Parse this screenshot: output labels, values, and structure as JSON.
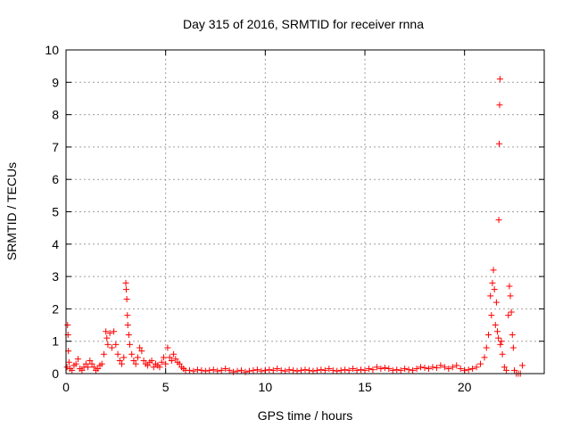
{
  "chart_data": {
    "type": "scatter",
    "title": "Day 315 of 2016, SRMTID for receiver rnna",
    "xlabel": "GPS time / hours",
    "ylabel": "SRMTID / TECUs",
    "xlim": [
      0,
      24
    ],
    "ylim": [
      0,
      10
    ],
    "xticks": [
      "0",
      "5",
      "10",
      "15",
      "20"
    ],
    "yticks": [
      "0",
      "1",
      "2",
      "3",
      "4",
      "5",
      "6",
      "7",
      "8",
      "9",
      "10"
    ],
    "grid": true,
    "marker": "+",
    "color": "#ff0000",
    "series": [
      {
        "values": [
          [
            0.05,
            0.2
          ],
          [
            0.08,
            1.5
          ],
          [
            0.1,
            1.2
          ],
          [
            0.12,
            0.7
          ],
          [
            0.15,
            0.35
          ],
          [
            0.2,
            0.15
          ],
          [
            0.3,
            0.1
          ],
          [
            0.4,
            0.25
          ],
          [
            0.5,
            0.3
          ],
          [
            0.6,
            0.45
          ],
          [
            0.7,
            0.15
          ],
          [
            0.8,
            0.1
          ],
          [
            0.9,
            0.2
          ],
          [
            1.0,
            0.3
          ],
          [
            1.1,
            0.2
          ],
          [
            1.2,
            0.4
          ],
          [
            1.3,
            0.3
          ],
          [
            1.4,
            0.2
          ],
          [
            1.5,
            0.1
          ],
          [
            1.6,
            0.15
          ],
          [
            1.7,
            0.25
          ],
          [
            1.8,
            0.3
          ],
          [
            1.9,
            0.6
          ],
          [
            2.0,
            1.3
          ],
          [
            2.05,
            1.1
          ],
          [
            2.1,
            0.9
          ],
          [
            2.2,
            1.25
          ],
          [
            2.3,
            0.8
          ],
          [
            2.4,
            1.3
          ],
          [
            2.5,
            0.9
          ],
          [
            2.6,
            0.6
          ],
          [
            2.7,
            0.4
          ],
          [
            2.8,
            0.3
          ],
          [
            2.9,
            0.5
          ],
          [
            3.0,
            2.8
          ],
          [
            3.02,
            2.6
          ],
          [
            3.05,
            2.3
          ],
          [
            3.08,
            1.8
          ],
          [
            3.1,
            1.5
          ],
          [
            3.15,
            1.2
          ],
          [
            3.2,
            0.9
          ],
          [
            3.3,
            0.6
          ],
          [
            3.4,
            0.4
          ],
          [
            3.5,
            0.3
          ],
          [
            3.6,
            0.5
          ],
          [
            3.7,
            0.8
          ],
          [
            3.8,
            0.7
          ],
          [
            3.9,
            0.4
          ],
          [
            4.0,
            0.3
          ],
          [
            4.1,
            0.25
          ],
          [
            4.2,
            0.35
          ],
          [
            4.3,
            0.4
          ],
          [
            4.4,
            0.2
          ],
          [
            4.5,
            0.3
          ],
          [
            4.6,
            0.25
          ],
          [
            4.7,
            0.2
          ],
          [
            4.8,
            0.35
          ],
          [
            4.9,
            0.5
          ],
          [
            5.0,
            0.3
          ],
          [
            5.1,
            0.8
          ],
          [
            5.2,
            0.5
          ],
          [
            5.3,
            0.4
          ],
          [
            5.4,
            0.6
          ],
          [
            5.5,
            0.45
          ],
          [
            5.6,
            0.35
          ],
          [
            5.7,
            0.3
          ],
          [
            5.8,
            0.2
          ],
          [
            5.9,
            0.15
          ],
          [
            6.0,
            0.1
          ],
          [
            6.2,
            0.1
          ],
          [
            6.4,
            0.08
          ],
          [
            6.6,
            0.12
          ],
          [
            6.8,
            0.1
          ],
          [
            7.0,
            0.08
          ],
          [
            7.2,
            0.1
          ],
          [
            7.4,
            0.12
          ],
          [
            7.6,
            0.08
          ],
          [
            7.8,
            0.1
          ],
          [
            8.0,
            0.15
          ],
          [
            8.2,
            0.1
          ],
          [
            8.4,
            0.05
          ],
          [
            8.6,
            0.08
          ],
          [
            8.8,
            0.1
          ],
          [
            9.0,
            0.05
          ],
          [
            9.2,
            0.08
          ],
          [
            9.4,
            0.1
          ],
          [
            9.6,
            0.12
          ],
          [
            9.8,
            0.08
          ],
          [
            10.0,
            0.1
          ],
          [
            10.2,
            0.12
          ],
          [
            10.4,
            0.1
          ],
          [
            10.6,
            0.15
          ],
          [
            10.8,
            0.1
          ],
          [
            11.0,
            0.08
          ],
          [
            11.2,
            0.12
          ],
          [
            11.4,
            0.1
          ],
          [
            11.6,
            0.08
          ],
          [
            11.8,
            0.1
          ],
          [
            12.0,
            0.12
          ],
          [
            12.2,
            0.1
          ],
          [
            12.4,
            0.08
          ],
          [
            12.6,
            0.1
          ],
          [
            12.8,
            0.12
          ],
          [
            13.0,
            0.1
          ],
          [
            13.2,
            0.15
          ],
          [
            13.4,
            0.1
          ],
          [
            13.6,
            0.08
          ],
          [
            13.8,
            0.1
          ],
          [
            14.0,
            0.12
          ],
          [
            14.2,
            0.1
          ],
          [
            14.4,
            0.15
          ],
          [
            14.6,
            0.1
          ],
          [
            14.8,
            0.12
          ],
          [
            15.0,
            0.1
          ],
          [
            15.2,
            0.15
          ],
          [
            15.4,
            0.12
          ],
          [
            15.6,
            0.2
          ],
          [
            15.8,
            0.15
          ],
          [
            16.0,
            0.18
          ],
          [
            16.2,
            0.15
          ],
          [
            16.4,
            0.1
          ],
          [
            16.6,
            0.12
          ],
          [
            16.8,
            0.1
          ],
          [
            17.0,
            0.15
          ],
          [
            17.2,
            0.12
          ],
          [
            17.4,
            0.1
          ],
          [
            17.6,
            0.15
          ],
          [
            17.8,
            0.2
          ],
          [
            18.0,
            0.18
          ],
          [
            18.2,
            0.15
          ],
          [
            18.4,
            0.2
          ],
          [
            18.6,
            0.18
          ],
          [
            18.8,
            0.25
          ],
          [
            19.0,
            0.2
          ],
          [
            19.2,
            0.15
          ],
          [
            19.4,
            0.2
          ],
          [
            19.6,
            0.25
          ],
          [
            19.8,
            0.15
          ],
          [
            20.0,
            0.1
          ],
          [
            20.2,
            0.12
          ],
          [
            20.4,
            0.15
          ],
          [
            20.6,
            0.2
          ],
          [
            20.8,
            0.3
          ],
          [
            21.0,
            0.5
          ],
          [
            21.1,
            0.8
          ],
          [
            21.2,
            1.2
          ],
          [
            21.3,
            2.4
          ],
          [
            21.35,
            1.8
          ],
          [
            21.4,
            2.8
          ],
          [
            21.45,
            3.2
          ],
          [
            21.5,
            2.6
          ],
          [
            21.55,
            1.5
          ],
          [
            21.6,
            2.2
          ],
          [
            21.65,
            1.3
          ],
          [
            21.7,
            1.1
          ],
          [
            21.72,
            4.75
          ],
          [
            21.74,
            7.1
          ],
          [
            21.76,
            8.3
          ],
          [
            21.78,
            9.1
          ],
          [
            21.8,
            0.9
          ],
          [
            21.85,
            1.0
          ],
          [
            21.9,
            0.6
          ],
          [
            22.0,
            0.2
          ],
          [
            22.1,
            0.1
          ],
          [
            22.2,
            1.8
          ],
          [
            22.25,
            2.7
          ],
          [
            22.3,
            2.4
          ],
          [
            22.35,
            1.9
          ],
          [
            22.4,
            1.2
          ],
          [
            22.45,
            0.8
          ],
          [
            22.5,
            0.1
          ],
          [
            22.6,
            0.0
          ],
          [
            22.7,
            0.0
          ],
          [
            22.8,
            0.0
          ],
          [
            22.9,
            0.25
          ]
        ]
      }
    ]
  }
}
